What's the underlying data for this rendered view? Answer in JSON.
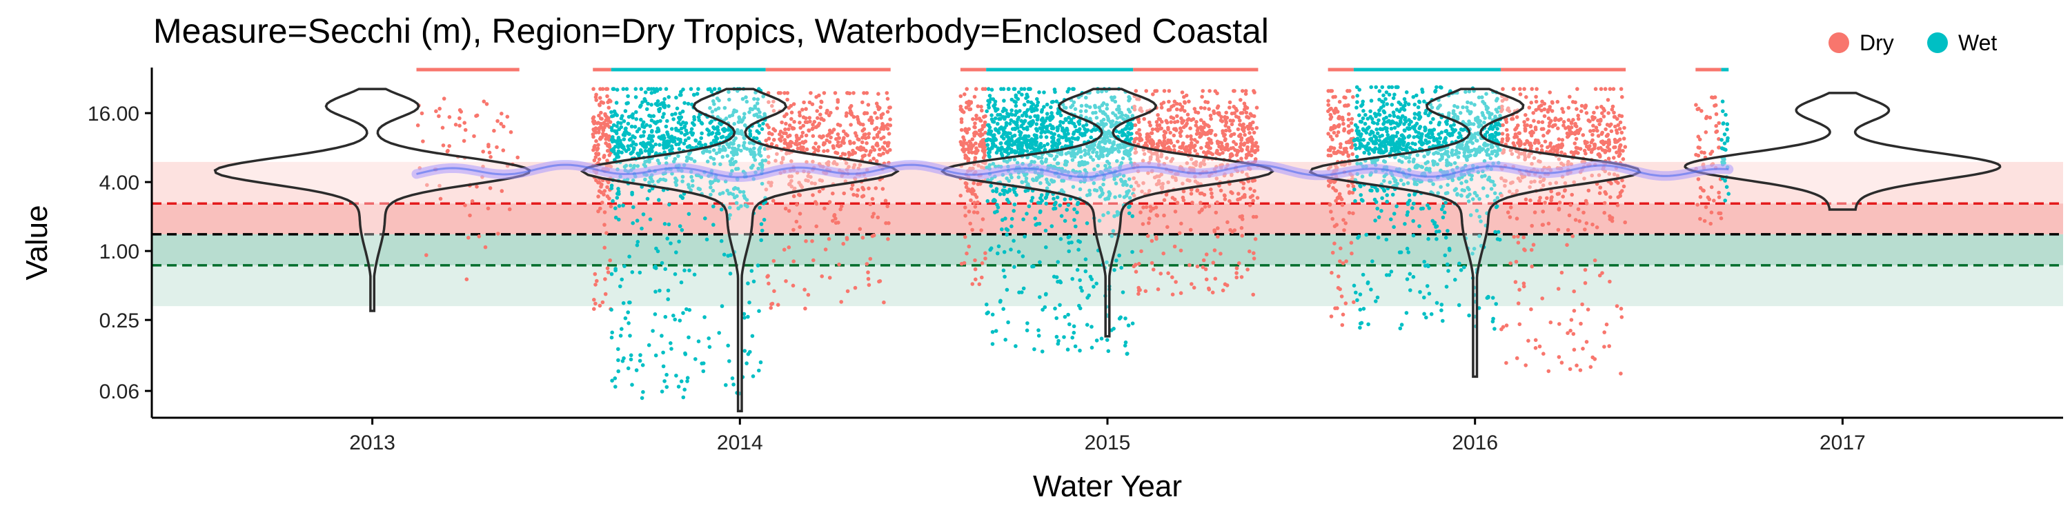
{
  "chart_data": {
    "type": "scatter",
    "title": "Measure=Secchi (m), Region=Dry Tropics, Waterbody=Enclosed Coastal",
    "xlabel": "Water Year",
    "ylabel": "Value",
    "x_ticks": [
      "2013",
      "2014",
      "2015",
      "2016",
      "2017"
    ],
    "x_range": [
      2012.4,
      2017.6
    ],
    "y_scale": "log2",
    "y_ticks": [
      16.0,
      4.0,
      1.0,
      0.25,
      0.06
    ],
    "y_tick_labels": [
      "16.00",
      "4.00",
      "1.00",
      "0.25",
      "0.06"
    ],
    "y_range": [
      0.035,
      40
    ],
    "legend": {
      "position": "top-right",
      "entries": [
        {
          "label": "Dry",
          "color": "#F8766D"
        },
        {
          "label": "Wet",
          "color": "#00BFC4"
        }
      ]
    },
    "guidelines": [
      {
        "value": 2.6,
        "style": "dashed",
        "color": "#e31a1c",
        "role": "upper"
      },
      {
        "value": 1.4,
        "style": "dashed",
        "color": "#000000",
        "role": "guideline"
      },
      {
        "value": 0.75,
        "style": "dashed",
        "color": "#006d2c",
        "role": "lower"
      }
    ],
    "bands": [
      {
        "from": 2.6,
        "to": 6.0,
        "color": "#fde2e0"
      },
      {
        "from": 1.4,
        "to": 2.6,
        "color": "#f9c0bd"
      },
      {
        "from": 0.75,
        "to": 1.4,
        "color": "#b8ddd0"
      },
      {
        "from": 0.33,
        "to": 0.75,
        "color": "#e0f0ea"
      }
    ],
    "season_segments": [
      {
        "season": "Dry",
        "x_start": 2013.12,
        "x_end": 2013.4
      },
      {
        "season": "Dry",
        "x_start": 2013.6,
        "x_end": 2013.65
      },
      {
        "season": "Wet",
        "x_start": 2013.65,
        "x_end": 2014.07
      },
      {
        "season": "Dry",
        "x_start": 2014.07,
        "x_end": 2014.41
      },
      {
        "season": "Dry",
        "x_start": 2014.6,
        "x_end": 2014.67
      },
      {
        "season": "Wet",
        "x_start": 2014.67,
        "x_end": 2015.07
      },
      {
        "season": "Dry",
        "x_start": 2015.07,
        "x_end": 2015.41
      },
      {
        "season": "Dry",
        "x_start": 2015.6,
        "x_end": 2015.67
      },
      {
        "season": "Wet",
        "x_start": 2015.67,
        "x_end": 2016.07
      },
      {
        "season": "Dry",
        "x_start": 2016.07,
        "x_end": 2016.41
      },
      {
        "season": "Dry",
        "x_start": 2016.6,
        "x_end": 2016.67
      },
      {
        "season": "Wet",
        "x_start": 2016.67,
        "x_end": 2016.69
      }
    ],
    "violins": [
      {
        "year": 2013,
        "median": 5.0,
        "min": 0.3,
        "max": 26,
        "halfwidth": 0.42
      },
      {
        "year": 2014,
        "median": 5.0,
        "min": 0.04,
        "max": 26,
        "halfwidth": 0.42
      },
      {
        "year": 2015,
        "median": 5.0,
        "min": 0.18,
        "max": 26,
        "halfwidth": 0.44
      },
      {
        "year": 2016,
        "median": 5.0,
        "min": 0.08,
        "max": 26,
        "halfwidth": 0.44
      },
      {
        "year": 2017,
        "median": 5.5,
        "min": 2.3,
        "max": 24,
        "halfwidth": 0.42
      }
    ],
    "trend": {
      "color": "#aa99ff",
      "value": 5.0,
      "x_start": 2013.12,
      "x_end": 2016.69
    },
    "clusters": [
      {
        "season": "Dry",
        "x_start": 2013.12,
        "x_end": 2013.4,
        "y_min": 0.3,
        "y_max": 24,
        "n": 70
      },
      {
        "season": "Dry",
        "x_start": 2013.6,
        "x_end": 2013.65,
        "y_min": 0.3,
        "y_max": 26,
        "n": 160
      },
      {
        "season": "Wet",
        "x_start": 2013.65,
        "x_end": 2014.07,
        "y_min": 0.05,
        "y_max": 26,
        "n": 900
      },
      {
        "season": "Dry",
        "x_start": 2014.07,
        "x_end": 2014.41,
        "y_min": 0.3,
        "y_max": 24,
        "n": 500
      },
      {
        "season": "Dry",
        "x_start": 2014.6,
        "x_end": 2014.67,
        "y_min": 0.4,
        "y_max": 26,
        "n": 180
      },
      {
        "season": "Wet",
        "x_start": 2014.67,
        "x_end": 2015.07,
        "y_min": 0.12,
        "y_max": 26,
        "n": 1200
      },
      {
        "season": "Dry",
        "x_start": 2015.07,
        "x_end": 2015.41,
        "y_min": 0.4,
        "y_max": 25,
        "n": 700
      },
      {
        "season": "Dry",
        "x_start": 2015.6,
        "x_end": 2015.67,
        "y_min": 0.2,
        "y_max": 25,
        "n": 180
      },
      {
        "season": "Wet",
        "x_start": 2015.67,
        "x_end": 2016.07,
        "y_min": 0.2,
        "y_max": 27,
        "n": 1000
      },
      {
        "season": "Dry",
        "x_start": 2016.07,
        "x_end": 2016.41,
        "y_min": 0.08,
        "y_max": 26,
        "n": 600
      },
      {
        "season": "Dry",
        "x_start": 2016.6,
        "x_end": 2016.67,
        "y_min": 1.5,
        "y_max": 22,
        "n": 60
      },
      {
        "season": "Wet",
        "x_start": 2016.67,
        "x_end": 2016.69,
        "y_min": 2.5,
        "y_max": 22,
        "n": 30
      }
    ]
  }
}
